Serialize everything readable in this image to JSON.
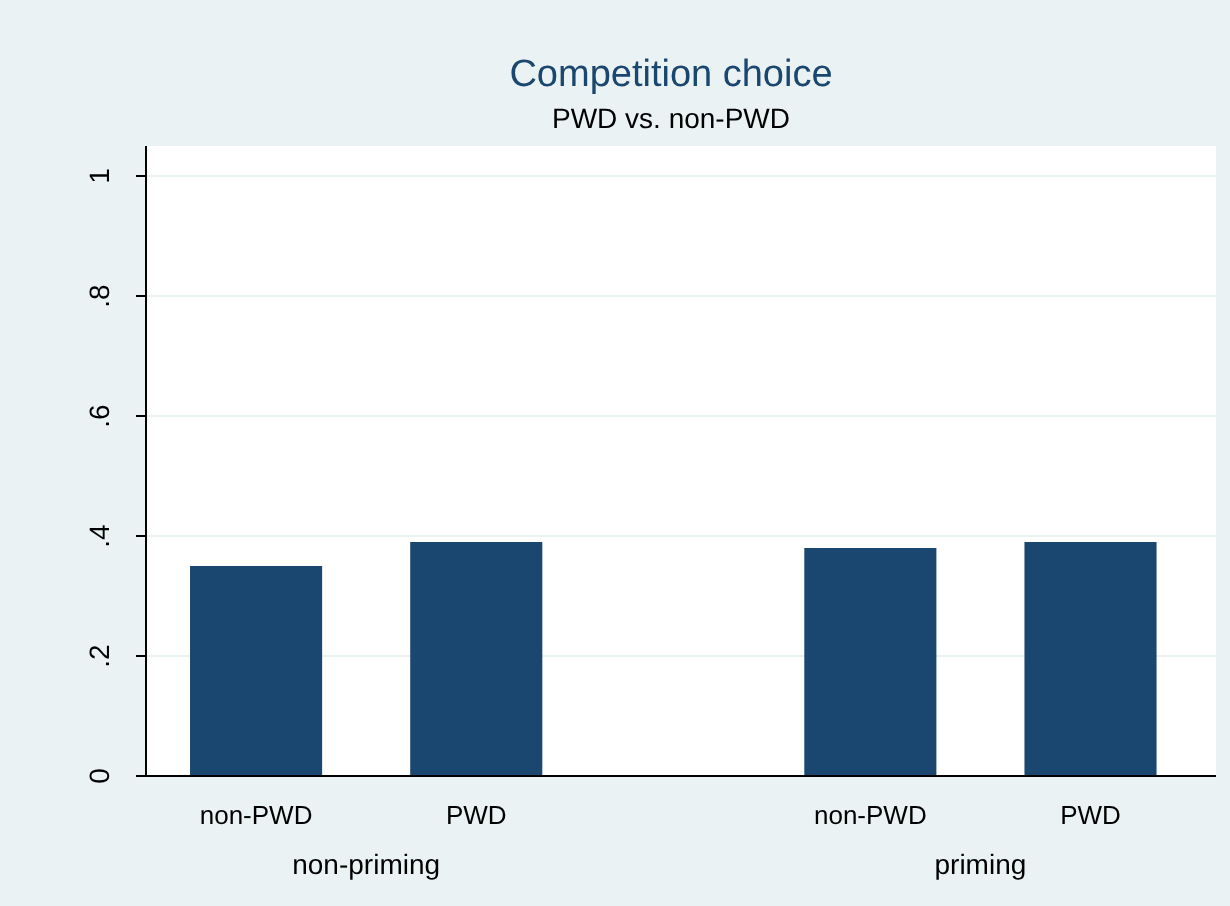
{
  "chart_data": {
    "type": "bar",
    "title": "Competition choice",
    "subtitle": "PWD vs. non-PWD",
    "categories": [
      "non-PWD",
      "PWD",
      "non-PWD",
      "PWD"
    ],
    "values": [
      0.35,
      0.39,
      0.38,
      0.39
    ],
    "color": "#1a476f",
    "ylim": [
      0,
      1.05
    ],
    "yticks": [
      {
        "value": 0,
        "label": "0"
      },
      {
        "value": 0.2,
        "label": ".2"
      },
      {
        "value": 0.4,
        "label": ".4"
      },
      {
        "value": 0.6,
        "label": ".6"
      },
      {
        "value": 0.8,
        "label": ".8"
      },
      {
        "value": 1,
        "label": "1"
      }
    ],
    "grid": "y",
    "annotations": [
      "non-priming",
      "priming"
    ]
  }
}
